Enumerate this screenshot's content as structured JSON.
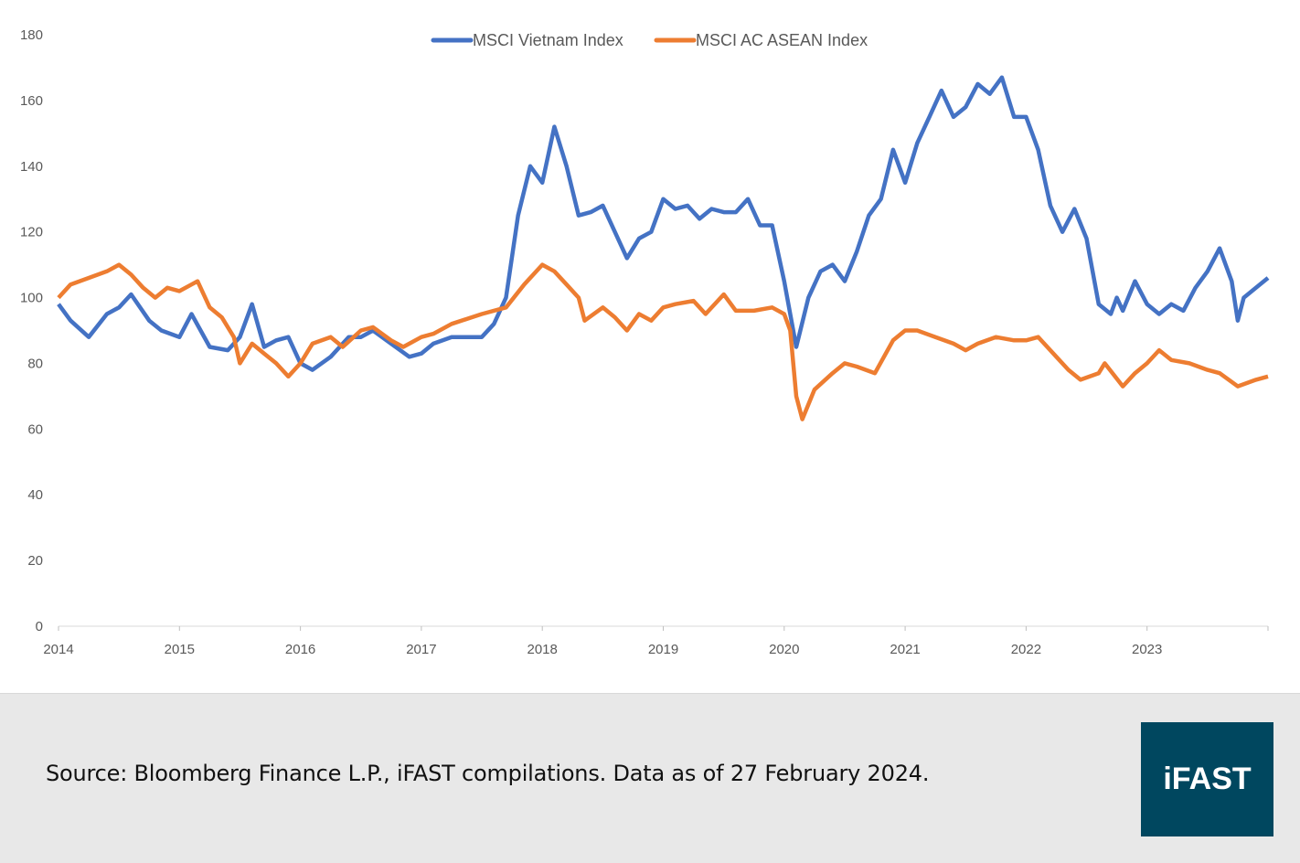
{
  "chart_data": {
    "type": "line",
    "title": "",
    "xlabel": "",
    "ylabel": "",
    "ylim": [
      0,
      180
    ],
    "yticks": [
      "0",
      "20",
      "40",
      "60",
      "80",
      "100",
      "120",
      "140",
      "160",
      "180"
    ],
    "xlim": [
      2014,
      2024
    ],
    "xticks": [
      "2014",
      "2015",
      "2016",
      "2017",
      "2018",
      "2019",
      "2020",
      "2021",
      "2022",
      "2023"
    ],
    "grid": false,
    "legend_position": "top-center",
    "series": [
      {
        "name": "MSCI Vietnam Index",
        "color": "#4472c4",
        "x": [
          2014.0,
          2014.1,
          2014.25,
          2014.4,
          2014.5,
          2014.6,
          2014.75,
          2014.85,
          2015.0,
          2015.1,
          2015.25,
          2015.4,
          2015.5,
          2015.6,
          2015.7,
          2015.8,
          2015.9,
          2016.0,
          2016.1,
          2016.25,
          2016.4,
          2016.5,
          2016.6,
          2016.75,
          2016.9,
          2017.0,
          2017.1,
          2017.25,
          2017.5,
          2017.6,
          2017.7,
          2017.8,
          2017.9,
          2018.0,
          2018.1,
          2018.2,
          2018.3,
          2018.4,
          2018.5,
          2018.6,
          2018.7,
          2018.8,
          2018.9,
          2019.0,
          2019.1,
          2019.2,
          2019.3,
          2019.4,
          2019.5,
          2019.6,
          2019.7,
          2019.8,
          2019.9,
          2020.0,
          2020.1,
          2020.2,
          2020.3,
          2020.4,
          2020.5,
          2020.6,
          2020.7,
          2020.8,
          2020.9,
          2021.0,
          2021.1,
          2021.2,
          2021.3,
          2021.4,
          2021.5,
          2021.6,
          2021.7,
          2021.8,
          2021.9,
          2022.0,
          2022.1,
          2022.2,
          2022.3,
          2022.4,
          2022.5,
          2022.6,
          2022.7,
          2022.75,
          2022.8,
          2022.9,
          2023.0,
          2023.1,
          2023.2,
          2023.3,
          2023.4,
          2023.5,
          2023.6,
          2023.7,
          2023.75,
          2023.8,
          2023.9,
          2024.0
        ],
        "values": [
          98,
          93,
          88,
          95,
          97,
          101,
          93,
          90,
          88,
          95,
          85,
          84,
          88,
          98,
          85,
          87,
          88,
          80,
          78,
          82,
          88,
          88,
          90,
          86,
          82,
          83,
          86,
          88,
          88,
          92,
          100,
          125,
          140,
          135,
          152,
          140,
          125,
          126,
          128,
          120,
          112,
          118,
          120,
          130,
          127,
          128,
          124,
          127,
          126,
          126,
          130,
          122,
          122,
          105,
          85,
          100,
          108,
          110,
          105,
          114,
          125,
          130,
          145,
          135,
          147,
          155,
          163,
          155,
          158,
          165,
          162,
          167,
          155,
          155,
          145,
          128,
          120,
          127,
          118,
          98,
          95,
          100,
          96,
          105,
          98,
          95,
          98,
          96,
          103,
          108,
          115,
          105,
          93,
          100,
          103,
          106
        ]
      },
      {
        "name": "MSCI AC ASEAN Index",
        "color": "#ed7d31",
        "x": [
          2014.0,
          2014.1,
          2014.25,
          2014.4,
          2014.5,
          2014.6,
          2014.7,
          2014.8,
          2014.9,
          2015.0,
          2015.1,
          2015.15,
          2015.25,
          2015.35,
          2015.45,
          2015.5,
          2015.6,
          2015.7,
          2015.8,
          2015.9,
          2016.0,
          2016.1,
          2016.25,
          2016.35,
          2016.5,
          2016.6,
          2016.75,
          2016.85,
          2017.0,
          2017.1,
          2017.25,
          2017.5,
          2017.7,
          2017.85,
          2018.0,
          2018.1,
          2018.2,
          2018.3,
          2018.35,
          2018.5,
          2018.6,
          2018.7,
          2018.8,
          2018.9,
          2019.0,
          2019.1,
          2019.25,
          2019.35,
          2019.5,
          2019.6,
          2019.75,
          2019.9,
          2020.0,
          2020.05,
          2020.1,
          2020.15,
          2020.25,
          2020.4,
          2020.5,
          2020.6,
          2020.75,
          2020.9,
          2021.0,
          2021.1,
          2021.25,
          2021.4,
          2021.5,
          2021.6,
          2021.75,
          2021.9,
          2022.0,
          2022.1,
          2022.25,
          2022.35,
          2022.45,
          2022.6,
          2022.65,
          2022.8,
          2022.9,
          2023.0,
          2023.1,
          2023.2,
          2023.35,
          2023.5,
          2023.6,
          2023.75,
          2023.9,
          2024.0
        ],
        "values": [
          100,
          104,
          106,
          108,
          110,
          107,
          103,
          100,
          103,
          102,
          104,
          105,
          97,
          94,
          88,
          80,
          86,
          83,
          80,
          76,
          80,
          86,
          88,
          85,
          90,
          91,
          87,
          85,
          88,
          89,
          92,
          95,
          97,
          104,
          110,
          108,
          104,
          100,
          93,
          97,
          94,
          90,
          95,
          93,
          97,
          98,
          99,
          95,
          101,
          96,
          96,
          97,
          95,
          90,
          70,
          63,
          72,
          77,
          80,
          79,
          77,
          87,
          90,
          90,
          88,
          86,
          84,
          86,
          88,
          87,
          87,
          88,
          82,
          78,
          75,
          77,
          80,
          73,
          77,
          80,
          84,
          81,
          80,
          78,
          77,
          73,
          75,
          76
        ]
      }
    ]
  },
  "footer": {
    "source": "Source: Bloomberg Finance L.P., iFAST compilations. Data as of 27 February 2024.",
    "logo_text": "iFAST",
    "logo_color": "#00475f"
  }
}
